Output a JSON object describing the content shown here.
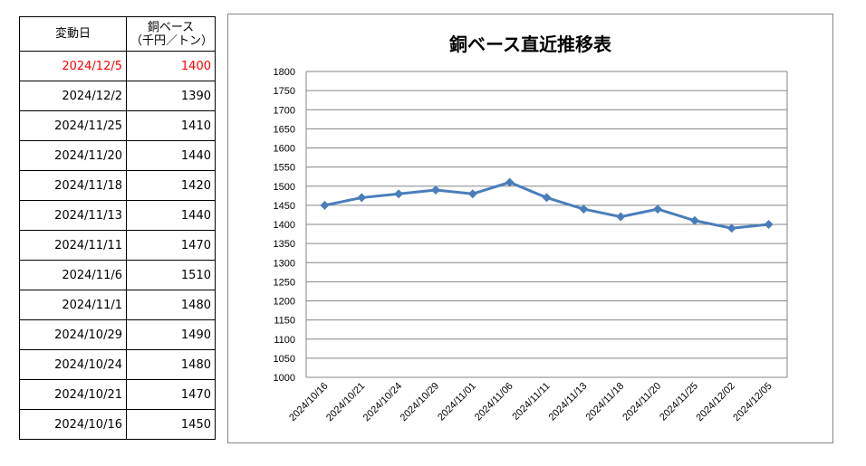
{
  "table": {
    "headers": [
      "変動日",
      "銅ベース",
      "（千円／トン）"
    ],
    "rows": [
      {
        "date": "2024/12/5",
        "value": "1400",
        "highlight": true
      },
      {
        "date": "2024/12/2",
        "value": "1390"
      },
      {
        "date": "2024/11/25",
        "value": "1410"
      },
      {
        "date": "2024/11/20",
        "value": "1440"
      },
      {
        "date": "2024/11/18",
        "value": "1420"
      },
      {
        "date": "2024/11/13",
        "value": "1440"
      },
      {
        "date": "2024/11/11",
        "value": "1470"
      },
      {
        "date": "2024/11/6",
        "value": "1510"
      },
      {
        "date": "2024/11/1",
        "value": "1480"
      },
      {
        "date": "2024/10/29",
        "value": "1490"
      },
      {
        "date": "2024/10/24",
        "value": "1480"
      },
      {
        "date": "2024/10/21",
        "value": "1470"
      },
      {
        "date": "2024/10/16",
        "value": "1450"
      }
    ],
    "highlight_color": "#ff0000"
  },
  "chart_data": {
    "type": "line",
    "title": "銅ベース直近推移表",
    "categories": [
      "2024/10/16",
      "2024/10/21",
      "2024/10/24",
      "2024/10/29",
      "2024/11/01",
      "2024/11/06",
      "2024/11/11",
      "2024/11/13",
      "2024/11/18",
      "2024/11/20",
      "2024/11/25",
      "2024/12/02",
      "2024/12/05"
    ],
    "series": [
      {
        "values": [
          1450,
          1470,
          1480,
          1490,
          1480,
          1510,
          1470,
          1440,
          1420,
          1440,
          1410,
          1390,
          1400
        ],
        "color": "#4a7ebb",
        "marker": "diamond"
      }
    ],
    "ylim": [
      1000,
      1800
    ],
    "ytick_step": 50,
    "grid": true,
    "legend": "none"
  }
}
